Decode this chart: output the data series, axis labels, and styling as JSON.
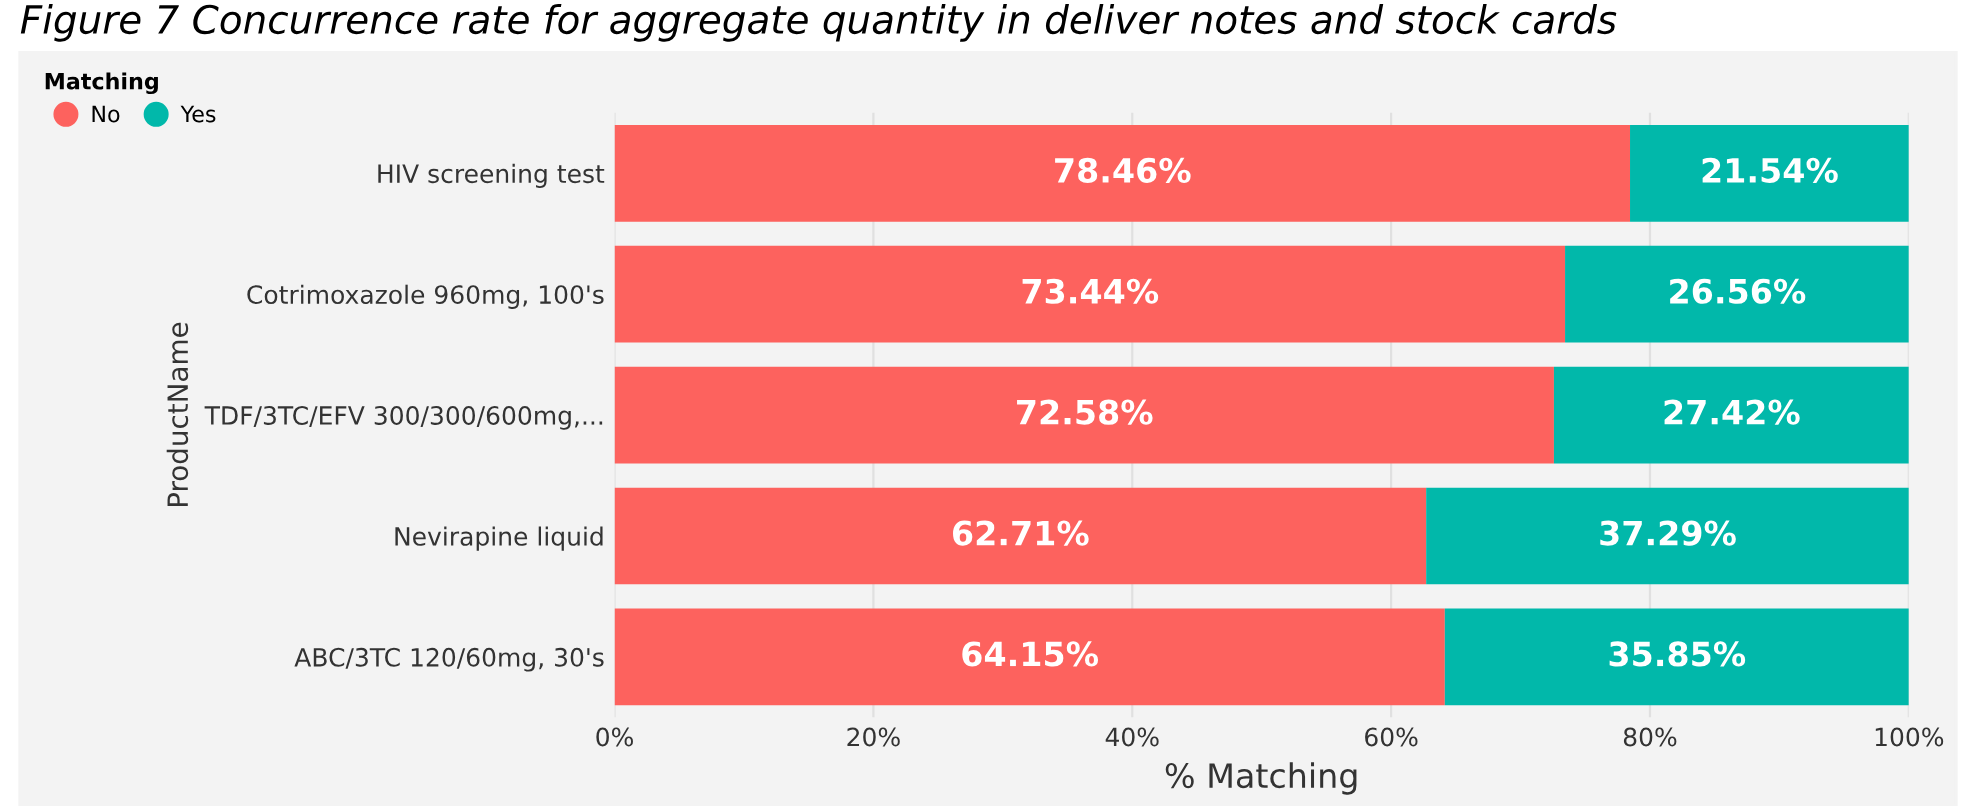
{
  "chart_data": {
    "type": "bar",
    "orientation": "horizontal",
    "stacked": true,
    "title": "Figure 7 Concurrence rate for aggregate quantity in deliver notes and stock cards",
    "categories": [
      "HIV screening test",
      "Cotrimoxazole 960mg, 100's",
      "TDF/3TC/EFV 300/300/600mg,...",
      "Nevirapine liquid",
      "ABC/3TC 120/60mg, 30's"
    ],
    "series": [
      {
        "name": "No",
        "color": "#fd625e",
        "values": [
          78.46,
          73.44,
          72.58,
          62.71,
          64.15
        ]
      },
      {
        "name": "Yes",
        "color": "#01b8aa",
        "values": [
          21.54,
          26.56,
          27.42,
          37.29,
          35.85
        ]
      }
    ],
    "value_labels": [
      [
        "78.46%",
        "73.44%",
        "72.58%",
        "62.71%",
        "64.15%"
      ],
      [
        "21.54%",
        "26.56%",
        "27.42%",
        "37.29%",
        "35.85%"
      ]
    ],
    "legend_title": "Matching",
    "legend": "top left",
    "xlabel": "% Matching",
    "ylabel": "ProductName",
    "xlim": [
      0,
      100
    ],
    "xticks": [
      {
        "value": 0,
        "label": "0%"
      },
      {
        "value": 20,
        "label": "20%"
      },
      {
        "value": 40,
        "label": "40%"
      },
      {
        "value": 60,
        "label": "60%"
      },
      {
        "value": 80,
        "label": "80%"
      },
      {
        "value": 100,
        "label": "100%"
      }
    ],
    "grid": "x"
  }
}
